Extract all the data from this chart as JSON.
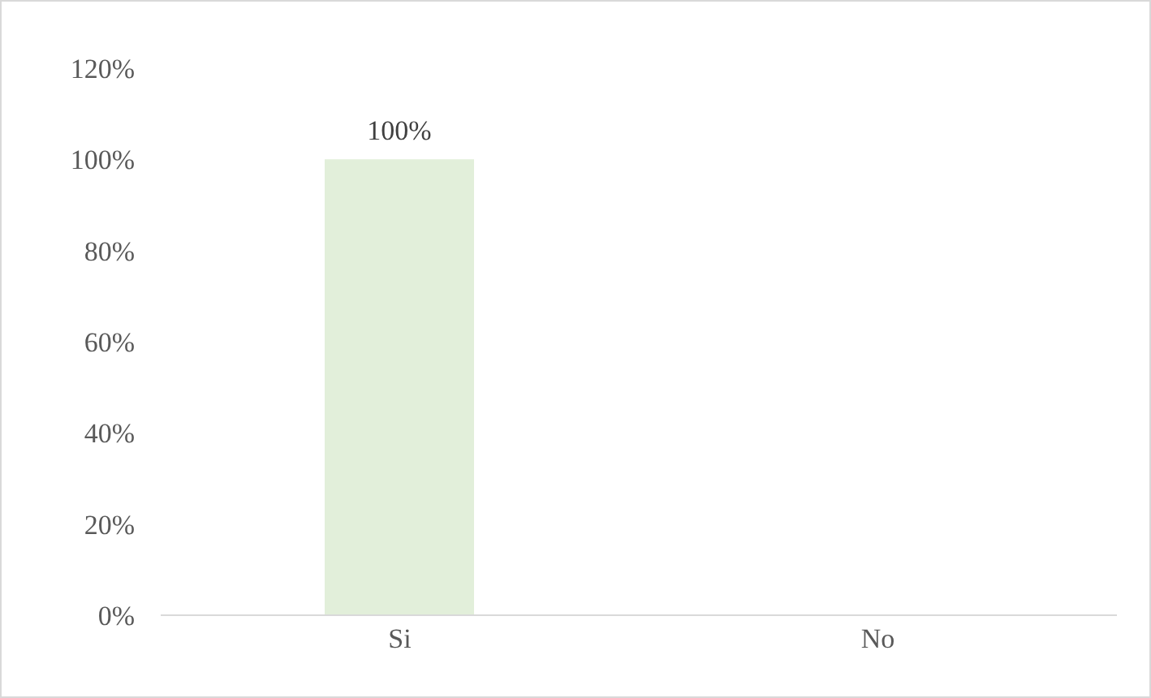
{
  "chart_data": {
    "type": "bar",
    "categories": [
      "Si",
      "No"
    ],
    "values": [
      100,
      0
    ],
    "color": "#e2efda",
    "value_labels": [
      "100%",
      null
    ],
    "ylim": [
      0,
      120
    ],
    "yticks": [
      {
        "value": 0,
        "label": "0%"
      },
      {
        "value": 20,
        "label": "20%"
      },
      {
        "value": 40,
        "label": "40%"
      },
      {
        "value": 60,
        "label": "60%"
      },
      {
        "value": 80,
        "label": "80%"
      },
      {
        "value": 100,
        "label": "100%"
      },
      {
        "value": 120,
        "label": "120%"
      }
    ],
    "grid": false,
    "legend": false
  }
}
